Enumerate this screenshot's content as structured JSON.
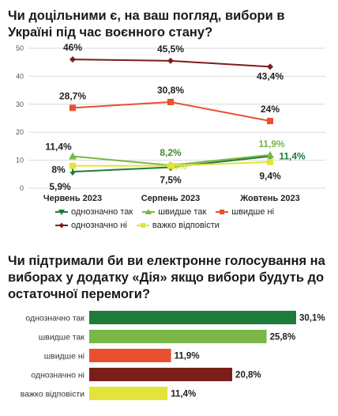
{
  "title1": "Чи доцільними є, на ваш погляд, вибори в Україні під час воєнного стану?",
  "title2": "Чи підтримали би ви електронне голосування на виборах у додатку «Дія» якщо вибори будуть до остаточної перемоги?",
  "chart_data": [
    {
      "type": "line",
      "x": [
        "Червень 2023",
        "Серпень 2023",
        "Жовтень 2023"
      ],
      "ylim": [
        0,
        50
      ],
      "yticks": [
        0,
        10,
        20,
        30,
        40,
        50
      ],
      "grid": true,
      "legend_placement": "bottom",
      "series": [
        {
          "name": "однозначно так",
          "values": [
            5.9,
            7.5,
            11.4
          ],
          "labels": [
            "5,9%",
            "7,5%",
            "11,4%"
          ],
          "color": "#1e7b3a",
          "marker": "arrow-down"
        },
        {
          "name": "швидше так",
          "values": [
            11.4,
            8.2,
            11.9
          ],
          "labels": [
            "11,4%",
            "8,2%",
            "11,9%"
          ],
          "color": "#7ab648",
          "marker": "triangle"
        },
        {
          "name": "швидше ні",
          "values": [
            28.7,
            30.8,
            24
          ],
          "labels": [
            "28,7%",
            "30,8%",
            "24%"
          ],
          "color": "#e8502f",
          "marker": "square"
        },
        {
          "name": "однозначно ні",
          "values": [
            46,
            45.5,
            43.4
          ],
          "labels": [
            "46%",
            "45,5%",
            "43,4%"
          ],
          "color": "#7a1e1a",
          "marker": "diamond"
        },
        {
          "name": "важко відповісти",
          "values": [
            8,
            8,
            9.4
          ],
          "labels": [
            "8%",
            "8%",
            "9,4%"
          ],
          "color": "#e4e33a",
          "marker": "square"
        }
      ]
    },
    {
      "type": "bar",
      "orientation": "horizontal",
      "categories": [
        "однозначно так",
        "швидше так",
        "швидше ні",
        "однозначно ні",
        "важко відповісти"
      ],
      "values": [
        30.1,
        25.8,
        11.9,
        20.8,
        11.4
      ],
      "labels": [
        "30,1%",
        "25,8%",
        "11,9%",
        "20,8%",
        "11,4%"
      ],
      "colors": [
        "#1e7b3a",
        "#7ab648",
        "#e8502f",
        "#7a1e1a",
        "#e4e33a"
      ],
      "xlim": [
        0,
        30.1
      ]
    }
  ]
}
